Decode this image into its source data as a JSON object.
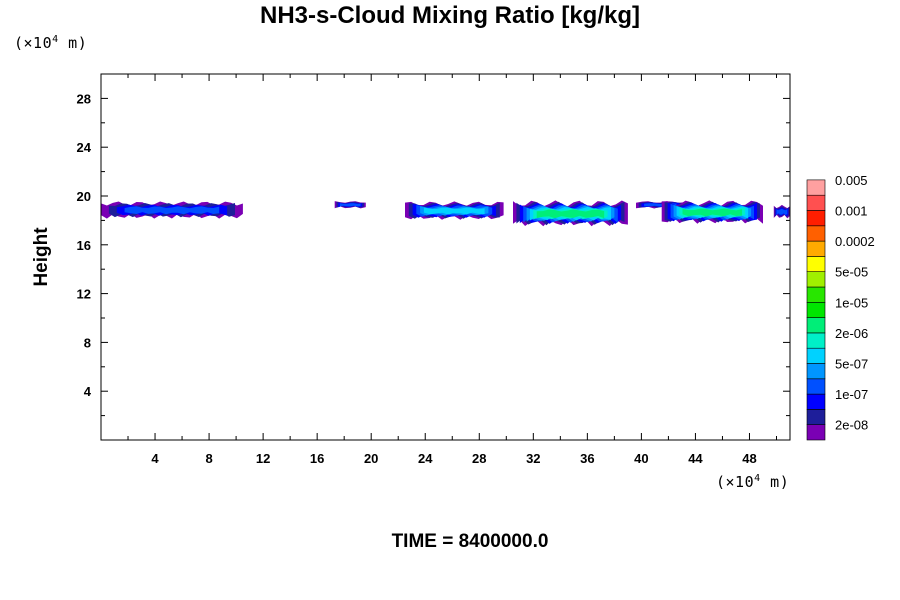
{
  "chart_data": {
    "type": "heatmap",
    "title": "NH3-s-Cloud Mixing Ratio [kg/kg]",
    "ylabel": "Height",
    "xlabel": "",
    "x_unit": "(×10",
    "x_unit_exp": "4",
    "x_unit_tail": " m)",
    "y_unit": "(×10",
    "y_unit_exp": "4",
    "y_unit_tail": " m)",
    "xlim": [
      0,
      51
    ],
    "ylim": [
      0,
      30
    ],
    "xticks": [
      4,
      8,
      12,
      16,
      20,
      24,
      28,
      32,
      36,
      40,
      44,
      48
    ],
    "yticks": [
      4,
      8,
      12,
      16,
      20,
      24,
      28
    ],
    "grid": false,
    "footer": "TIME = 8400000.0",
    "colorbar": {
      "colors": [
        "#7a00b4",
        "#1e1e9a",
        "#0000ff",
        "#0050ff",
        "#0096ff",
        "#00d2ff",
        "#00f0c8",
        "#00ee78",
        "#00e600",
        "#28e600",
        "#a0f000",
        "#ffff00",
        "#ffaa00",
        "#ff6000",
        "#ff1e00",
        "#ff5050",
        "#ffa0a0"
      ],
      "labels": [
        "2e-08",
        "1e-07",
        "5e-07",
        "2e-06",
        "1e-05",
        "5e-05",
        "0.0002",
        "0.001",
        "0.005"
      ]
    },
    "cloud_regions": [
      {
        "x": [
          0,
          10.5
        ],
        "y": [
          18.2,
          19.6
        ],
        "max_level": "1e-07"
      },
      {
        "x": [
          17.3,
          19.6
        ],
        "y": [
          19.0,
          19.6
        ],
        "max_level": "1e-07"
      },
      {
        "x": [
          22.5,
          29.8
        ],
        "y": [
          18.1,
          19.6
        ],
        "max_level": "5e-07"
      },
      {
        "x": [
          30.5,
          39.0
        ],
        "y": [
          17.6,
          19.7
        ],
        "max_level": "2e-06"
      },
      {
        "x": [
          39.6,
          43.2
        ],
        "y": [
          19.0,
          19.6
        ],
        "max_level": "1e-07"
      },
      {
        "x": [
          41.5,
          49.0
        ],
        "y": [
          17.8,
          19.7
        ],
        "max_level": "2e-06"
      },
      {
        "x": [
          49.8,
          51.0
        ],
        "y": [
          18.2,
          19.3
        ],
        "max_level": "1e-07"
      }
    ]
  }
}
